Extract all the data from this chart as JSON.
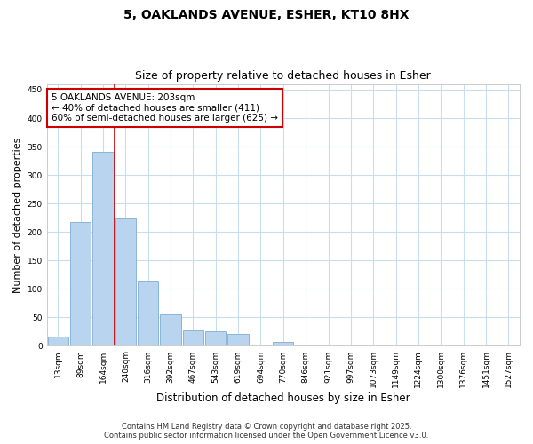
{
  "title_line1": "5, OAKLANDS AVENUE, ESHER, KT10 8HX",
  "title_line2": "Size of property relative to detached houses in Esher",
  "xlabel": "Distribution of detached houses by size in Esher",
  "ylabel": "Number of detached properties",
  "categories": [
    "13sqm",
    "89sqm",
    "164sqm",
    "240sqm",
    "316sqm",
    "392sqm",
    "467sqm",
    "543sqm",
    "619sqm",
    "694sqm",
    "770sqm",
    "846sqm",
    "921sqm",
    "997sqm",
    "1073sqm",
    "1149sqm",
    "1224sqm",
    "1300sqm",
    "1376sqm",
    "1451sqm",
    "1527sqm"
  ],
  "values": [
    16,
    217,
    340,
    224,
    113,
    55,
    27,
    26,
    21,
    0,
    7,
    0,
    0,
    0,
    0,
    0,
    0,
    0,
    0,
    0,
    0
  ],
  "bar_color": "#b8d4ee",
  "bar_edge_color": "#8ab4d8",
  "vline_x": 2.5,
  "vline_color": "#cc0000",
  "annotation_text": "5 OAKLANDS AVENUE: 203sqm\n← 40% of detached houses are smaller (411)\n60% of semi-detached houses are larger (625) →",
  "annotation_box_color": "#ffffff",
  "annotation_box_edge": "#cc0000",
  "ylim": [
    0,
    460
  ],
  "yticks": [
    0,
    50,
    100,
    150,
    200,
    250,
    300,
    350,
    400,
    450
  ],
  "grid_color": "#c8ddf0",
  "bg_color": "#ffffff",
  "plot_bg_color": "#ffffff",
  "footer_line1": "Contains HM Land Registry data © Crown copyright and database right 2025.",
  "footer_line2": "Contains public sector information licensed under the Open Government Licence v3.0."
}
